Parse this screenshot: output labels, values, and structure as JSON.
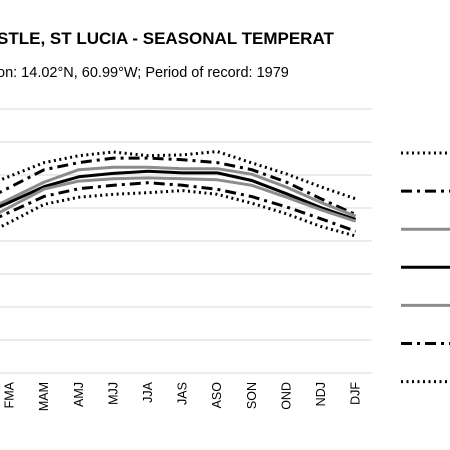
{
  "chart_data": {
    "type": "line",
    "title": "STLE, ST LUCIA - SEASONAL TEMPERAT",
    "subtitle": "on: 14.02°N, 60.99°W; Period of record: 1979",
    "categories": [
      "FMA",
      "MAM",
      "AMJ",
      "MJJ",
      "JJA",
      "JAS",
      "ASO",
      "SON",
      "OND",
      "NDJ",
      "DJF"
    ],
    "ylim": [
      0,
      100
    ],
    "grid": true,
    "series": [
      {
        "style": "dotted",
        "color": "#000000",
        "values": [
          74.5,
          79.7,
          82.3,
          83.7,
          82.3,
          82.6,
          83.9,
          79.6,
          75.4,
          70.5,
          66.0
        ]
      },
      {
        "style": "dashdot",
        "color": "#000000",
        "values": [
          70.3,
          77.0,
          79.7,
          81.4,
          81.4,
          80.8,
          79.7,
          77.0,
          72.3,
          66.0,
          60.0
        ]
      },
      {
        "style": "solid",
        "color": "#8c8c8c",
        "values": [
          65.9,
          72.3,
          77.0,
          77.9,
          77.9,
          77.4,
          77.4,
          75.3,
          70.4,
          64.6,
          59.4
        ]
      },
      {
        "style": "solid",
        "color": "#000000",
        "values": [
          64.7,
          70.6,
          74.3,
          75.6,
          76.4,
          75.8,
          75.8,
          72.9,
          67.9,
          62.6,
          58.2
        ]
      },
      {
        "style": "solid",
        "color": "#8c8c8c",
        "values": [
          62.8,
          69.7,
          72.7,
          73.6,
          73.9,
          73.6,
          73.2,
          71.1,
          66.6,
          61.8,
          57.5
        ]
      },
      {
        "style": "dashdot",
        "color": "#000000",
        "values": [
          60.9,
          66.9,
          69.8,
          71.1,
          72.1,
          71.1,
          69.6,
          66.8,
          62.9,
          58.4,
          53.7
        ]
      },
      {
        "style": "dotted",
        "color": "#000000",
        "values": [
          57.1,
          63.9,
          66.6,
          67.7,
          68.3,
          69.1,
          67.7,
          64.3,
          60.3,
          55.5,
          51.9
        ]
      }
    ],
    "legend": {
      "position": "right"
    }
  }
}
